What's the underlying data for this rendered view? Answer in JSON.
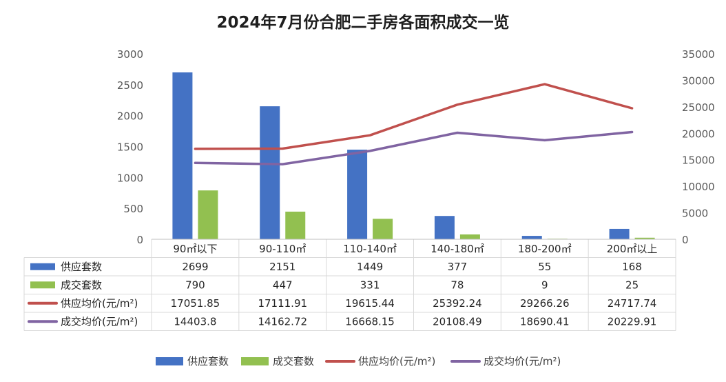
{
  "chart_data": {
    "type": "bar",
    "title": "2024年7月份合肥二手房各面积成交一览",
    "categories": [
      "90㎡以下",
      "90-110㎡",
      "110-140㎡",
      "140-180㎡",
      "180-200㎡",
      "200㎡以上"
    ],
    "series": [
      {
        "name": "供应套数",
        "type": "bar",
        "axis": "left",
        "color": "#4472c4",
        "values": [
          2699,
          2151,
          1449,
          377,
          55,
          168
        ]
      },
      {
        "name": "成交套数",
        "type": "bar",
        "axis": "left",
        "color": "#92c050",
        "values": [
          790,
          447,
          331,
          78,
          9,
          25
        ]
      },
      {
        "name": "供应均价(元/m²)",
        "type": "line",
        "axis": "right",
        "color": "#c0504d",
        "values": [
          17051.85,
          17111.91,
          19615.44,
          25392.24,
          29266.26,
          24717.74
        ]
      },
      {
        "name": "成交均价(元/m²)",
        "type": "line",
        "axis": "right",
        "color": "#8064a2",
        "values": [
          14403.8,
          14162.72,
          16668.15,
          20108.49,
          18690.41,
          20229.91
        ]
      }
    ],
    "table_values": [
      [
        "2699",
        "2151",
        "1449",
        "377",
        "55",
        "168"
      ],
      [
        "790",
        "447",
        "331",
        "78",
        "9",
        "25"
      ],
      [
        "17051.85",
        "17111.91",
        "19615.44",
        "25392.24",
        "29266.26",
        "24717.74"
      ],
      [
        "14403.8",
        "14162.72",
        "16668.15",
        "20108.49",
        "18690.41",
        "20229.91"
      ]
    ],
    "y_left": {
      "min": 0,
      "max": 3000,
      "ticks": [
        0,
        500,
        1000,
        1500,
        2000,
        2500,
        3000
      ]
    },
    "y_right": {
      "min": 0,
      "max": 35000,
      "ticks": [
        0,
        5000,
        10000,
        15000,
        20000,
        25000,
        30000,
        35000
      ]
    },
    "grid": false,
    "legend_position": "bottom",
    "data_table": true
  }
}
